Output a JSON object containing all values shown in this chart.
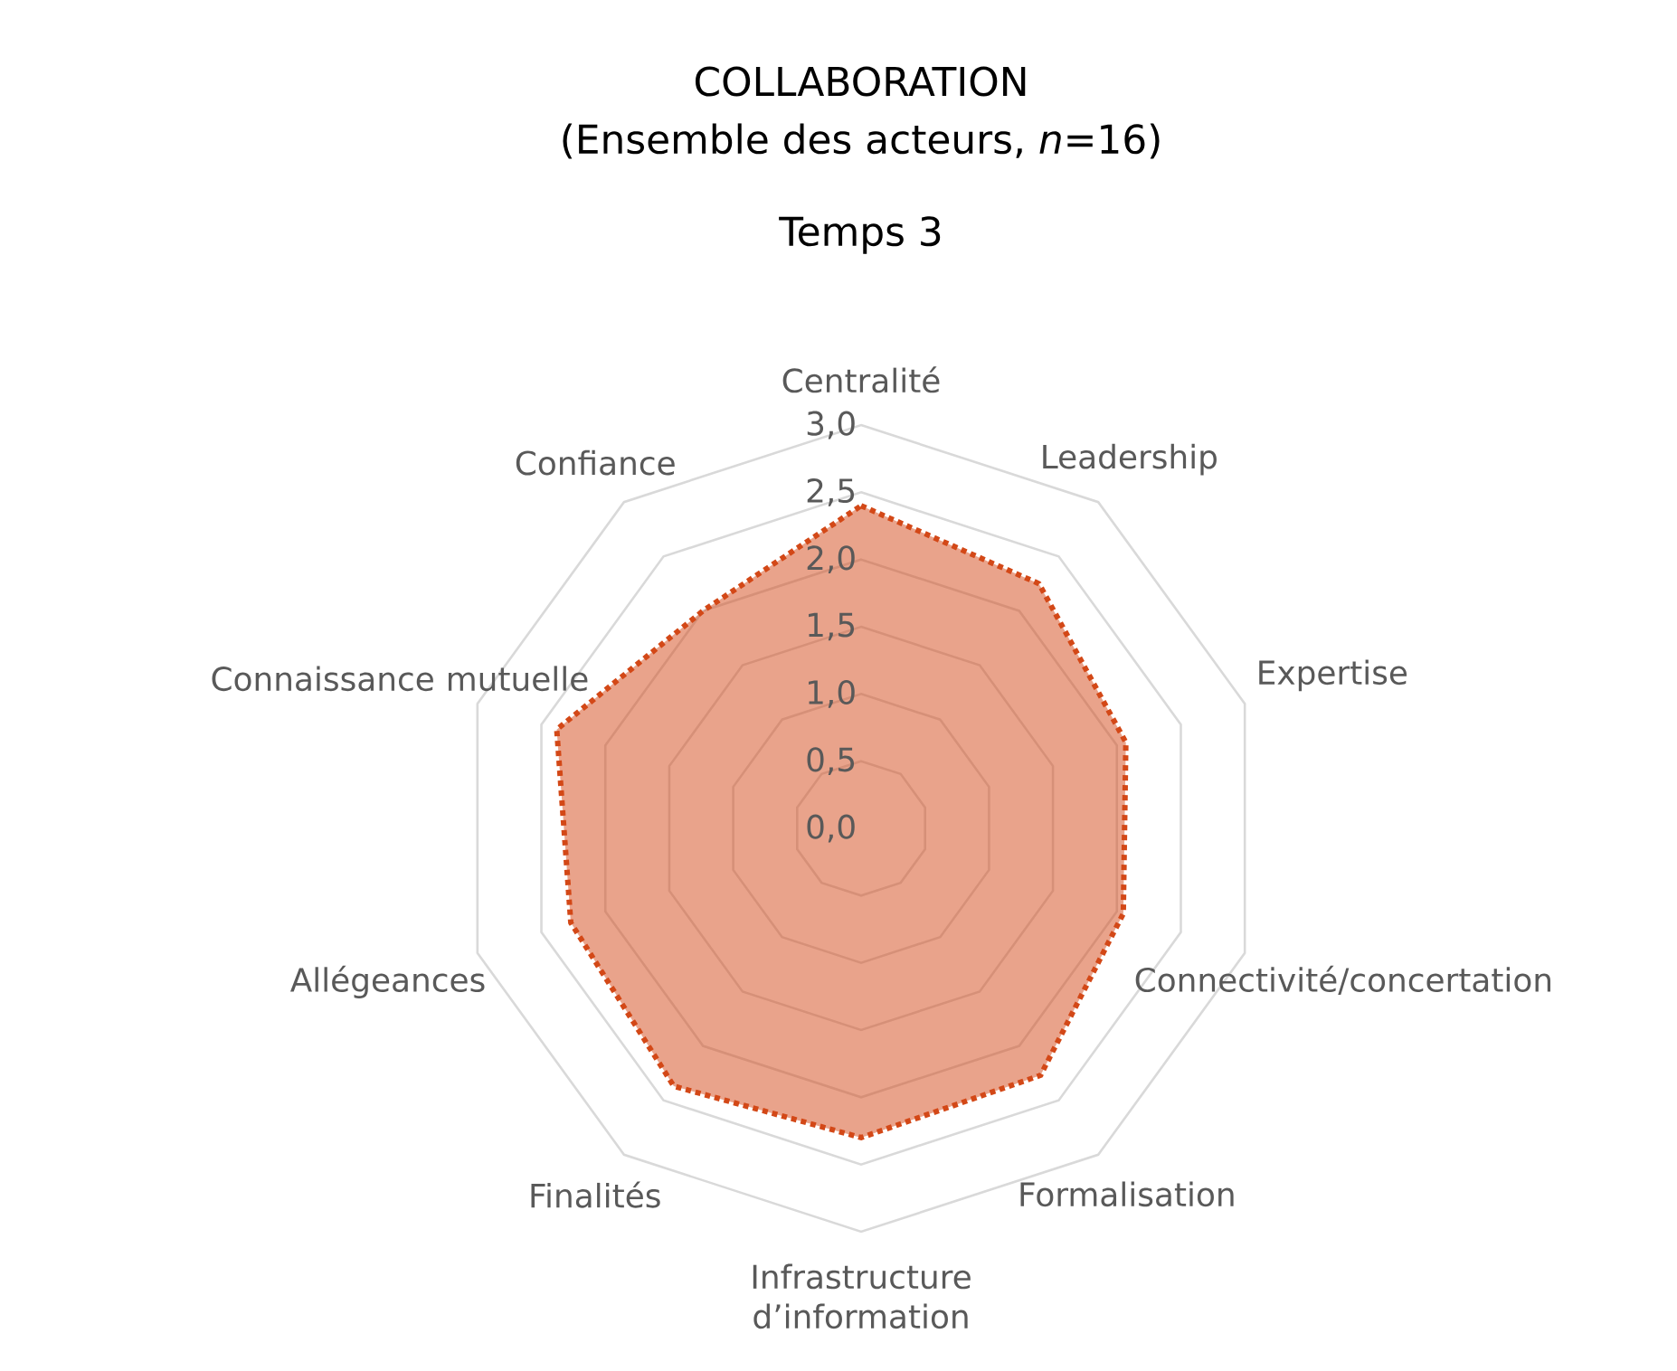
{
  "chart_data": {
    "type": "radar",
    "title": "COLLABORATION",
    "subtitle": "(Ensemble des acteurs, *n*=16)",
    "annotations": [
      "Temps 3"
    ],
    "categories": [
      "Centralité",
      "Leadership",
      "Expertise",
      "Connectivité/concertation",
      "Formalisation",
      "Infrastructure d’information",
      "Finalités",
      "Allégeances",
      "Connaissance mutuelle",
      "Confiance"
    ],
    "series": [
      {
        "color": "#d34817",
        "values": [
          2.4,
          2.25,
          2.07,
          2.05,
          2.27,
          2.3,
          2.37,
          2.27,
          2.38,
          2.0
        ]
      }
    ],
    "ylim": [
      0,
      3
    ],
    "yticks": [
      {
        "value": 0,
        "label": "0,0"
      },
      {
        "value": 0.5,
        "label": "0,5"
      },
      {
        "value": 1,
        "label": "1,0"
      },
      {
        "value": 1.5,
        "label": "1,5"
      },
      {
        "value": 2,
        "label": "2,0"
      },
      {
        "value": 2.5,
        "label": "2,5"
      },
      {
        "value": 3,
        "label": "3,0"
      }
    ],
    "grid": true,
    "line_style": "dotted"
  }
}
